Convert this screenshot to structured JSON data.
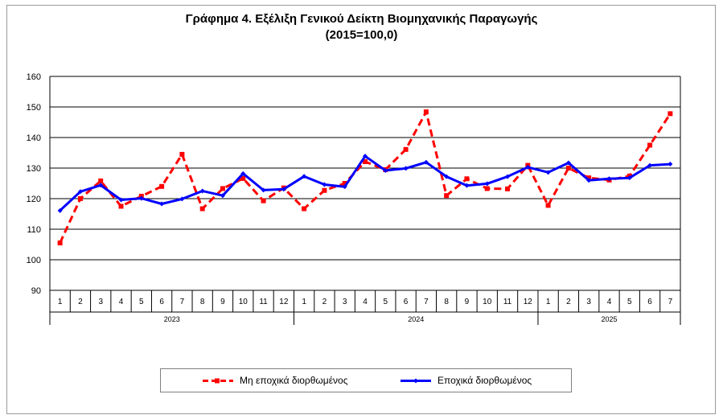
{
  "chart_data": {
    "type": "line",
    "title_line1": "Γράφημα 4. Εξέλιξη Γενικού Δείκτη Βιομηχανικής Παραγωγής",
    "title_line2": "(2015=100,0)",
    "ylim": [
      90,
      160
    ],
    "yticks": [
      "90",
      "100",
      "110",
      "120",
      "130",
      "140",
      "150",
      "160"
    ],
    "grid": true,
    "legend_position": "bottom",
    "x_months": [
      "1",
      "2",
      "3",
      "4",
      "5",
      "6",
      "7",
      "8",
      "9",
      "10",
      "11",
      "12",
      "1",
      "2",
      "3",
      "4",
      "5",
      "6",
      "7",
      "8",
      "9",
      "10",
      "11",
      "12",
      "1",
      "2",
      "3",
      "4",
      "5",
      "6",
      "7"
    ],
    "x_years": [
      {
        "label": "2023",
        "count": 12
      },
      {
        "label": "2024",
        "count": 12
      },
      {
        "label": "2025",
        "count": 7
      }
    ],
    "series": [
      {
        "name": "Μη εποχικά διορθωμένος",
        "color": "#ff0000",
        "style": "dashed",
        "values": [
          105.5,
          120.0,
          125.8,
          117.5,
          120.8,
          124.0,
          134.5,
          116.7,
          123.3,
          126.6,
          119.3,
          123.5,
          116.7,
          122.7,
          125.0,
          132.1,
          129.5,
          136.1,
          148.4,
          121.0,
          126.5,
          123.3,
          123.2,
          130.9,
          117.8,
          130.0,
          126.8,
          126.1,
          127.4,
          137.5,
          147.8
        ]
      },
      {
        "name": "Εποχικά διορθωμένος",
        "color": "#0000ff",
        "style": "solid",
        "values": [
          116.1,
          122.3,
          124.4,
          119.6,
          120.1,
          118.3,
          119.9,
          122.5,
          121.0,
          128.2,
          122.8,
          123.1,
          127.3,
          124.6,
          123.9,
          133.9,
          129.2,
          129.9,
          131.9,
          127.2,
          124.3,
          124.9,
          127.2,
          130.3,
          128.6,
          131.7,
          126.0,
          126.5,
          126.8,
          130.9,
          131.3
        ]
      }
    ]
  }
}
